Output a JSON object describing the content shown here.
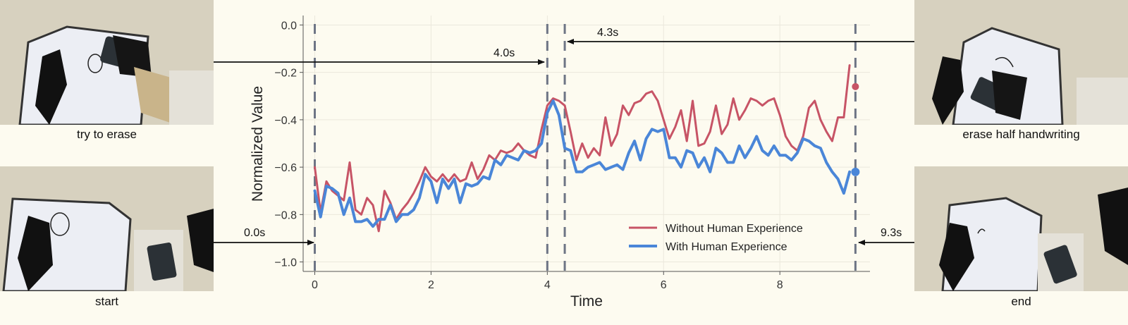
{
  "photos": {
    "try_to_erase": {
      "caption": "try to erase"
    },
    "start": {
      "caption": "start"
    },
    "erase_half": {
      "caption": "erase half handwriting"
    },
    "end": {
      "caption": "end"
    }
  },
  "annotations": [
    {
      "label": "4.0s",
      "time": 4.0
    },
    {
      "label": "4.3s",
      "time": 4.3
    },
    {
      "label": "0.0s",
      "time": 0.0
    },
    {
      "label": "9.3s",
      "time": 9.3
    }
  ],
  "colors": {
    "without": "#c75466",
    "with": "#4a86d8",
    "vline": "#6e7585",
    "background": "#fdfbf0"
  },
  "chart_data": {
    "type": "line",
    "title": "",
    "xlabel": "Time",
    "ylabel": "Normalized Value",
    "xlim": [
      -0.2,
      9.55
    ],
    "ylim": [
      -1.04,
      0.04
    ],
    "xticks": [
      0,
      2,
      4,
      6,
      8
    ],
    "yticks": [
      0.0,
      -0.2,
      -0.4,
      -0.6,
      -0.8,
      -1.0
    ],
    "ytick_labels": [
      "0.0",
      "−0.2",
      "−0.4",
      "−0.6",
      "−0.8",
      "−1.0"
    ],
    "grid": true,
    "legend_position": "bottom-right",
    "vertical_lines": [
      0.0,
      4.0,
      4.3,
      9.3
    ],
    "x": [
      0.0,
      0.1,
      0.2,
      0.3,
      0.4,
      0.5,
      0.6,
      0.7,
      0.8,
      0.9,
      1.0,
      1.1,
      1.2,
      1.3,
      1.4,
      1.5,
      1.6,
      1.7,
      1.8,
      1.9,
      2.0,
      2.1,
      2.2,
      2.3,
      2.4,
      2.5,
      2.6,
      2.7,
      2.8,
      2.9,
      3.0,
      3.1,
      3.2,
      3.3,
      3.4,
      3.5,
      3.6,
      3.7,
      3.8,
      3.9,
      4.0,
      4.1,
      4.2,
      4.3,
      4.4,
      4.5,
      4.6,
      4.7,
      4.8,
      4.9,
      5.0,
      5.1,
      5.2,
      5.3,
      5.4,
      5.5,
      5.6,
      5.7,
      5.8,
      5.9,
      6.0,
      6.1,
      6.2,
      6.3,
      6.4,
      6.5,
      6.6,
      6.7,
      6.8,
      6.9,
      7.0,
      7.1,
      7.2,
      7.3,
      7.4,
      7.5,
      7.6,
      7.7,
      7.8,
      7.9,
      8.0,
      8.1,
      8.2,
      8.3,
      8.4,
      8.5,
      8.6,
      8.7,
      8.8,
      8.9,
      9.0,
      9.1,
      9.2
    ],
    "series": [
      {
        "name": "Without Human Experience",
        "color": "#c75466",
        "line_width": 3,
        "values": [
          -0.6,
          -0.79,
          -0.66,
          -0.7,
          -0.72,
          -0.74,
          -0.58,
          -0.78,
          -0.8,
          -0.73,
          -0.76,
          -0.87,
          -0.7,
          -0.75,
          -0.82,
          -0.78,
          -0.75,
          -0.71,
          -0.66,
          -0.6,
          -0.64,
          -0.66,
          -0.63,
          -0.66,
          -0.63,
          -0.66,
          -0.65,
          -0.58,
          -0.65,
          -0.61,
          -0.55,
          -0.57,
          -0.53,
          -0.54,
          -0.53,
          -0.5,
          -0.53,
          -0.55,
          -0.56,
          -0.44,
          -0.34,
          -0.31,
          -0.32,
          -0.34,
          -0.45,
          -0.57,
          -0.5,
          -0.56,
          -0.52,
          -0.55,
          -0.39,
          -0.51,
          -0.46,
          -0.34,
          -0.38,
          -0.33,
          -0.32,
          -0.29,
          -0.28,
          -0.32,
          -0.4,
          -0.48,
          -0.43,
          -0.36,
          -0.49,
          -0.32,
          -0.51,
          -0.5,
          -0.45,
          -0.34,
          -0.46,
          -0.42,
          -0.31,
          -0.4,
          -0.36,
          -0.31,
          -0.32,
          -0.34,
          -0.32,
          -0.31,
          -0.38,
          -0.47,
          -0.51,
          -0.53,
          -0.47,
          -0.35,
          -0.32,
          -0.4,
          -0.45,
          -0.49,
          -0.39,
          -0.39,
          -0.17
        ],
        "end_point": {
          "x": 9.3,
          "y": -0.26
        }
      },
      {
        "name": "With Human Experience",
        "color": "#4a86d8",
        "line_width": 4,
        "values": [
          -0.7,
          -0.81,
          -0.68,
          -0.69,
          -0.71,
          -0.8,
          -0.73,
          -0.83,
          -0.83,
          -0.82,
          -0.85,
          -0.82,
          -0.82,
          -0.76,
          -0.83,
          -0.8,
          -0.8,
          -0.78,
          -0.73,
          -0.63,
          -0.66,
          -0.75,
          -0.65,
          -0.69,
          -0.65,
          -0.75,
          -0.67,
          -0.68,
          -0.67,
          -0.64,
          -0.65,
          -0.57,
          -0.59,
          -0.55,
          -0.56,
          -0.57,
          -0.53,
          -0.54,
          -0.53,
          -0.5,
          -0.37,
          -0.32,
          -0.38,
          -0.52,
          -0.53,
          -0.62,
          -0.62,
          -0.6,
          -0.59,
          -0.58,
          -0.61,
          -0.6,
          -0.59,
          -0.61,
          -0.54,
          -0.49,
          -0.57,
          -0.48,
          -0.44,
          -0.45,
          -0.44,
          -0.56,
          -0.56,
          -0.6,
          -0.53,
          -0.54,
          -0.6,
          -0.56,
          -0.62,
          -0.52,
          -0.54,
          -0.58,
          -0.58,
          -0.51,
          -0.56,
          -0.52,
          -0.47,
          -0.53,
          -0.55,
          -0.51,
          -0.55,
          -0.55,
          -0.57,
          -0.54,
          -0.48,
          -0.49,
          -0.51,
          -0.52,
          -0.58,
          -0.62,
          -0.65,
          -0.71,
          -0.62
        ],
        "end_point": {
          "x": 9.3,
          "y": -0.62
        }
      }
    ]
  }
}
